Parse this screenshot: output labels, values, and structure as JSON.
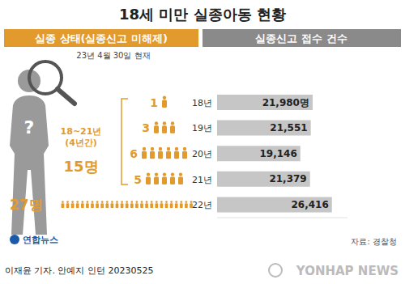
{
  "chart_data": {
    "type": "bar",
    "title": "18세 미만 실종아동 현황",
    "subtitle": "23년 4월 30일 현재",
    "orientation": "horizontal",
    "categories": [
      "18년",
      "19년",
      "20년",
      "21년",
      "22년"
    ],
    "series": [
      {
        "name": "실종신고 접수 건수",
        "type": "bar",
        "color": "#c6c6c6",
        "values": [
          21980,
          21551,
          19146,
          21379,
          26416
        ],
        "value_labels": [
          "21,980명",
          "21,551",
          "19,146",
          "21,379",
          "26,416"
        ]
      },
      {
        "name": "실종 상태(실종신고 미해제)",
        "type": "pictogram",
        "color": "#e39a2d",
        "values": [
          1,
          3,
          6,
          5,
          27
        ],
        "value_labels": [
          "1",
          "3",
          "6",
          "5",
          "27명"
        ]
      }
    ],
    "xlim": [
      0,
      30000
    ],
    "xticks": [
      0,
      30000
    ],
    "tick_labels": false,
    "grid": false,
    "data_labels": true,
    "annotations": {
      "icon_mark": "?",
      "bracket_years": "18~21년",
      "bracket_span": "(4년간)",
      "bracket_total": "15명",
      "logo": "연합뉴스",
      "source": "자료: 경찰청",
      "credit": "이재윤 기자. 안예지 인턴 20230525",
      "watermark": "YONHAP NEWS"
    }
  }
}
